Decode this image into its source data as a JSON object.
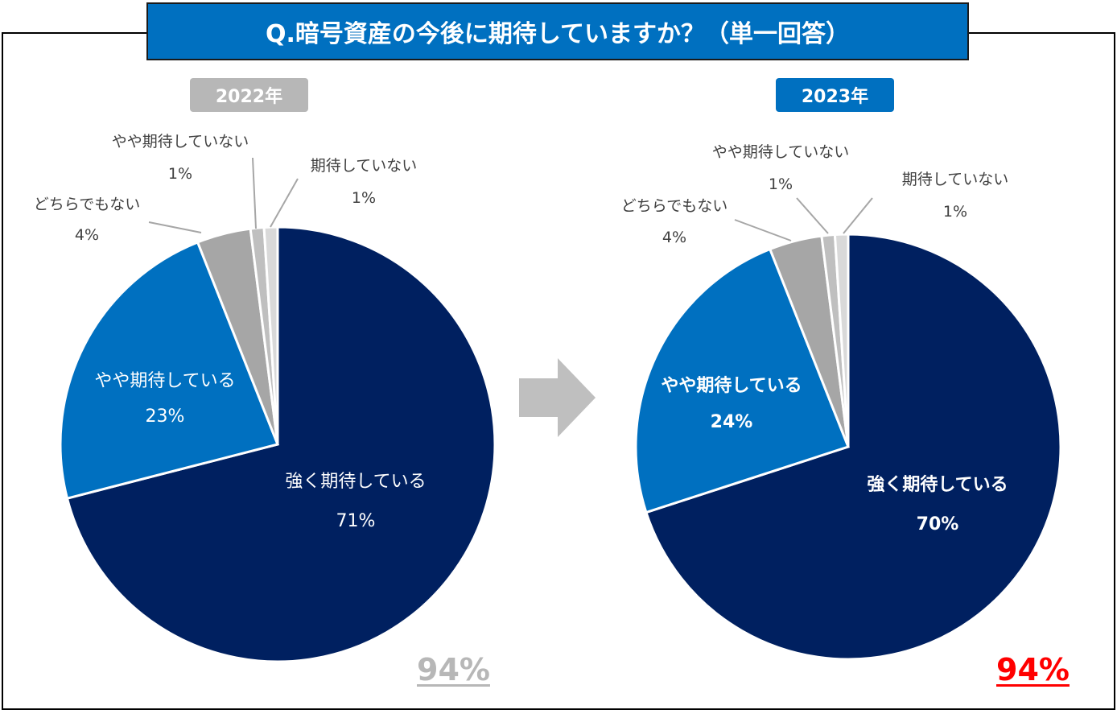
{
  "title": "Q.暗号資産の今後に期待していますか？（単一回答）",
  "colors": {
    "title_bg": "#0070c0",
    "badge_2022": "#b7b7b7",
    "badge_2023": "#0070c0",
    "total_2022": "#b7b7b7",
    "total_2023": "#ff0000",
    "arrow": "#bfbfbf"
  },
  "chart_data": [
    {
      "type": "pie",
      "year": "2022年",
      "total": "94%",
      "slices": [
        {
          "label": "強く期待している",
          "value": 71,
          "value_label": "71%",
          "color": "#002060",
          "label_color": "#ffffff",
          "bold": false
        },
        {
          "label": "やや期待している",
          "value": 23,
          "value_label": "23%",
          "color": "#0070c0",
          "label_color": "#ffffff",
          "bold": false
        },
        {
          "label": "どちらでもない",
          "value": 4,
          "value_label": "4%",
          "color": "#a6a6a6",
          "label_color": "#404040",
          "bold": false
        },
        {
          "label": "やや期待していない",
          "value": 1,
          "value_label": "1%",
          "color": "#bfbfbf",
          "label_color": "#404040",
          "bold": false
        },
        {
          "label": "期待していない",
          "value": 1,
          "value_label": "1%",
          "color": "#d9d9d9",
          "label_color": "#404040",
          "bold": false
        }
      ]
    },
    {
      "type": "pie",
      "year": "2023年",
      "total": "94%",
      "slices": [
        {
          "label": "強く期待している",
          "value": 70,
          "value_label": "70%",
          "color": "#002060",
          "label_color": "#ffffff",
          "bold": true
        },
        {
          "label": "やや期待している",
          "value": 24,
          "value_label": "24%",
          "color": "#0070c0",
          "label_color": "#ffffff",
          "bold": true
        },
        {
          "label": "どちらでもない",
          "value": 4,
          "value_label": "4%",
          "color": "#a6a6a6",
          "label_color": "#404040",
          "bold": false
        },
        {
          "label": "やや期待していない",
          "value": 1,
          "value_label": "1%",
          "color": "#bfbfbf",
          "label_color": "#404040",
          "bold": false
        },
        {
          "label": "期待していない",
          "value": 1,
          "value_label": "1%",
          "color": "#d9d9d9",
          "label_color": "#404040",
          "bold": false
        }
      ]
    }
  ]
}
